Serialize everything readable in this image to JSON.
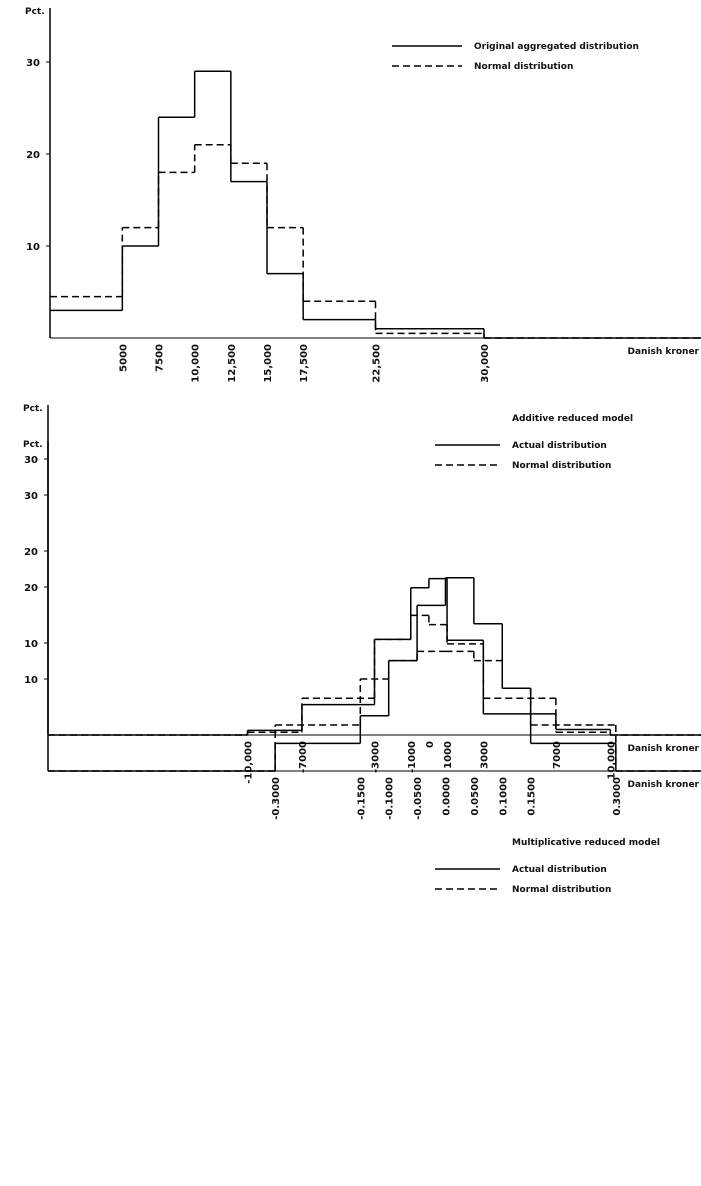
{
  "chart_data": [
    {
      "type": "histogram",
      "y_label": "Pct.",
      "x_label": "Danish kroner",
      "bins": [
        0,
        5000,
        7500,
        10000,
        12500,
        15000,
        17500,
        22500,
        30000,
        45000
      ],
      "series": [
        {
          "name": "Original aggregated distribution",
          "color": "#000000",
          "linestyle": "solid",
          "values": [
            3,
            10,
            24,
            29,
            17,
            7,
            2,
            1,
            0
          ]
        },
        {
          "name": "Normal distribution",
          "color": "#000000",
          "linestyle": "dashed",
          "values": [
            4.5,
            12,
            18,
            21,
            19,
            12,
            4,
            0.5,
            0
          ]
        }
      ],
      "xlim": [
        0,
        45000
      ],
      "ylim": [
        0,
        35
      ],
      "yticks": [
        10,
        20,
        30
      ],
      "xticks": [
        5000,
        7500,
        {
          "value": 10000,
          "label": "10,000"
        },
        {
          "value": 12500,
          "label": "12,500"
        },
        {
          "value": 15000,
          "label": "15,000"
        },
        {
          "value": 17500,
          "label": "17,500"
        },
        {
          "value": 22500,
          "label": "22,500"
        },
        {
          "value": 30000,
          "label": "30,000"
        }
      ],
      "legend": "upper right"
    },
    {
      "type": "histogram",
      "y_label": "Pct.",
      "x_label": "Danish kroner",
      "legend_title": "Additive reduced model",
      "bins": [
        -21000,
        -10000,
        -7000,
        -3000,
        -1000,
        0,
        1000,
        3000,
        7000,
        10000,
        15000
      ],
      "series": [
        {
          "name": "Actual distribution",
          "color": "#000000",
          "linestyle": "solid",
          "values": [
            0,
            0.5,
            3.3,
            10.4,
            16,
            17,
            10.3,
            2.3,
            0.6,
            0
          ]
        },
        {
          "name": "Normal distribution",
          "color": "#000000",
          "linestyle": "dashed",
          "values": [
            0,
            0.3,
            4,
            10.4,
            13,
            12,
            9.9,
            4,
            0.3,
            0
          ]
        }
      ],
      "xlim": [
        -21000,
        15000
      ],
      "ylim": [
        0,
        35
      ],
      "yticks": [
        10,
        20,
        30
      ],
      "xticks": [
        {
          "value": -10000,
          "label": "-10,000"
        },
        -7000,
        -3000,
        -1000,
        0,
        1000,
        3000,
        7000,
        {
          "value": 10000,
          "label": "10,000"
        }
      ],
      "legend": "upper right"
    },
    {
      "type": "histogram",
      "y_label": "Pct.",
      "x_label": "Danish kroner",
      "legend_title": "Multiplicative reduced model",
      "bins": [
        -0.7,
        -0.3,
        -0.15,
        -0.1,
        -0.05,
        0,
        0.05,
        0.1,
        0.15,
        0.3,
        0.45
      ],
      "series": [
        {
          "name": "Actual distribution",
          "color": "#000000",
          "linestyle": "solid",
          "values": [
            0,
            3,
            6,
            12,
            18,
            21,
            16,
            9,
            3,
            0
          ]
        },
        {
          "name": "Normal distribution",
          "color": "#000000",
          "linestyle": "dashed",
          "values": [
            0,
            5,
            10,
            12,
            13,
            13,
            12,
            9,
            5,
            0
          ]
        }
      ],
      "xlim": [
        -0.7,
        0.45
      ],
      "ylim": [
        0,
        35
      ],
      "yticks": [
        10,
        20,
        30
      ],
      "xticks": [
        {
          "value": -0.3,
          "label": "-0.3000"
        },
        {
          "value": -0.15,
          "label": "-0.1500"
        },
        {
          "value": -0.1,
          "label": "-0.1000"
        },
        {
          "value": -0.05,
          "label": "-0.0500"
        },
        {
          "value": 0,
          "label": "0.0000"
        },
        {
          "value": 0.05,
          "label": "0.0500"
        },
        {
          "value": 0.1,
          "label": "0.1000"
        },
        {
          "value": 0.15,
          "label": "0.1500"
        },
        {
          "value": 0.3,
          "label": "0.3000"
        }
      ],
      "legend": "upper right"
    }
  ]
}
